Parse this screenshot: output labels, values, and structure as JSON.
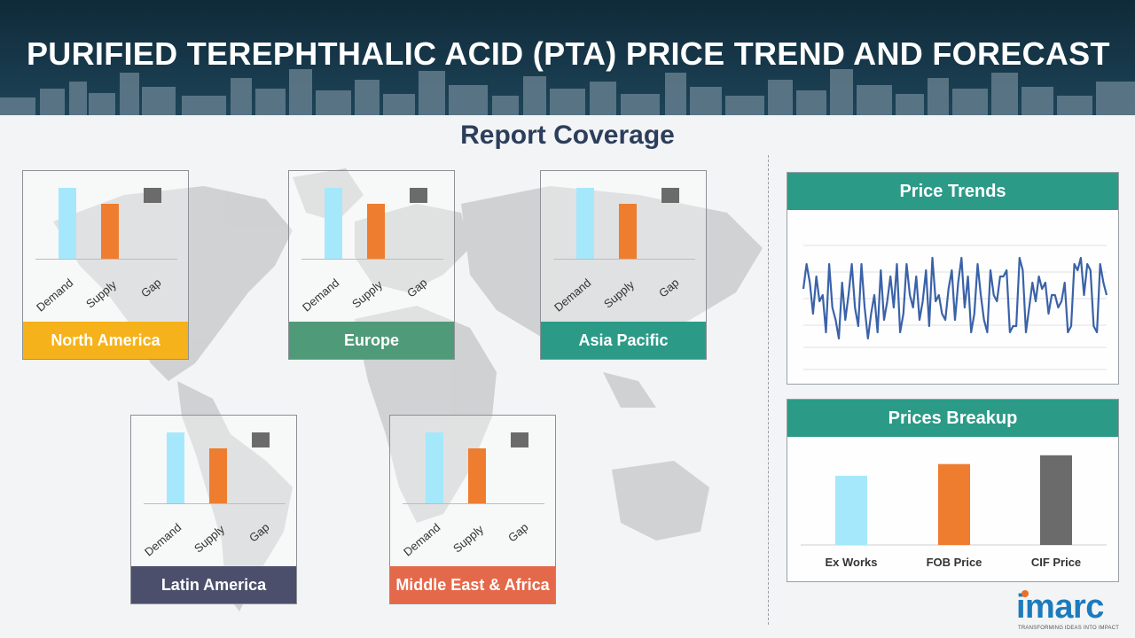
{
  "header": {
    "title": "PURIFIED TEREPHTHALIC ACID (PTA) PRICE TREND AND FORECAST"
  },
  "section": {
    "title": "Report Coverage"
  },
  "colors": {
    "demand": "#a6e8fb",
    "supply": "#ee7d30",
    "gap": "#6b6b6b",
    "panel_header": "#2b9b88"
  },
  "regions": [
    {
      "name": "North America",
      "color": "#f6b21a",
      "demand": 100,
      "supply": 78
    },
    {
      "name": "Europe",
      "color": "#4f9a78",
      "demand": 100,
      "supply": 78
    },
    {
      "name": "Asia Pacific",
      "color": "#2b9b88",
      "demand": 100,
      "supply": 78
    },
    {
      "name": "Latin America",
      "color": "#4b4f6b",
      "demand": 100,
      "supply": 78
    },
    {
      "name": "Middle East & Africa",
      "color": "#e4694a",
      "demand": 100,
      "supply": 78
    }
  ],
  "region_categories": [
    "Demand",
    "Supply",
    "Gap"
  ],
  "price_trends": {
    "title": "Price Trends"
  },
  "prices_breakup": {
    "title": "Prices Breakup"
  },
  "logo": {
    "name": "imarc",
    "tagline": "TRANSFORMING IDEAS INTO IMPACT"
  },
  "chart_data": [
    {
      "type": "bar",
      "region": "North America",
      "categories": [
        "Demand",
        "Supply",
        "Gap"
      ],
      "values": [
        100,
        78,
        null
      ]
    },
    {
      "type": "bar",
      "region": "Europe",
      "categories": [
        "Demand",
        "Supply",
        "Gap"
      ],
      "values": [
        100,
        78,
        null
      ]
    },
    {
      "type": "bar",
      "region": "Asia Pacific",
      "categories": [
        "Demand",
        "Supply",
        "Gap"
      ],
      "values": [
        100,
        78,
        null
      ]
    },
    {
      "type": "bar",
      "region": "Latin America",
      "categories": [
        "Demand",
        "Supply",
        "Gap"
      ],
      "values": [
        100,
        78,
        null
      ]
    },
    {
      "type": "bar",
      "region": "Middle East & Africa",
      "categories": [
        "Demand",
        "Supply",
        "Gap"
      ],
      "values": [
        100,
        78,
        null
      ]
    },
    {
      "type": "line",
      "title": "Price Trends",
      "values": [
        65,
        85,
        70,
        45,
        75,
        55,
        60,
        30,
        85,
        50,
        40,
        25,
        70,
        40,
        60,
        85,
        50,
        35,
        85,
        50,
        25,
        45,
        60,
        30,
        80,
        40,
        55,
        75,
        50,
        85,
        30,
        45,
        85,
        60,
        50,
        75,
        40,
        55,
        80,
        35,
        90,
        55,
        60,
        45,
        40,
        65,
        80,
        40,
        70,
        90,
        50,
        75,
        30,
        45,
        85,
        60,
        40,
        30,
        80,
        60,
        55,
        75,
        75,
        80,
        30,
        35,
        35,
        90,
        80,
        30,
        50,
        70,
        55,
        75,
        65,
        70,
        45,
        60,
        60,
        50,
        55,
        70,
        30,
        35,
        85,
        80,
        90,
        60,
        85,
        80,
        35,
        30,
        85,
        70,
        60
      ],
      "ylim": [
        0,
        100
      ]
    },
    {
      "type": "bar",
      "title": "Prices Breakup",
      "categories": [
        "Ex Works",
        "FOB Price",
        "CIF Price"
      ],
      "values": [
        71,
        83,
        92
      ],
      "colors": [
        "#a6e8fb",
        "#ee7d30",
        "#6b6b6b"
      ],
      "ylim": [
        0,
        100
      ]
    }
  ]
}
